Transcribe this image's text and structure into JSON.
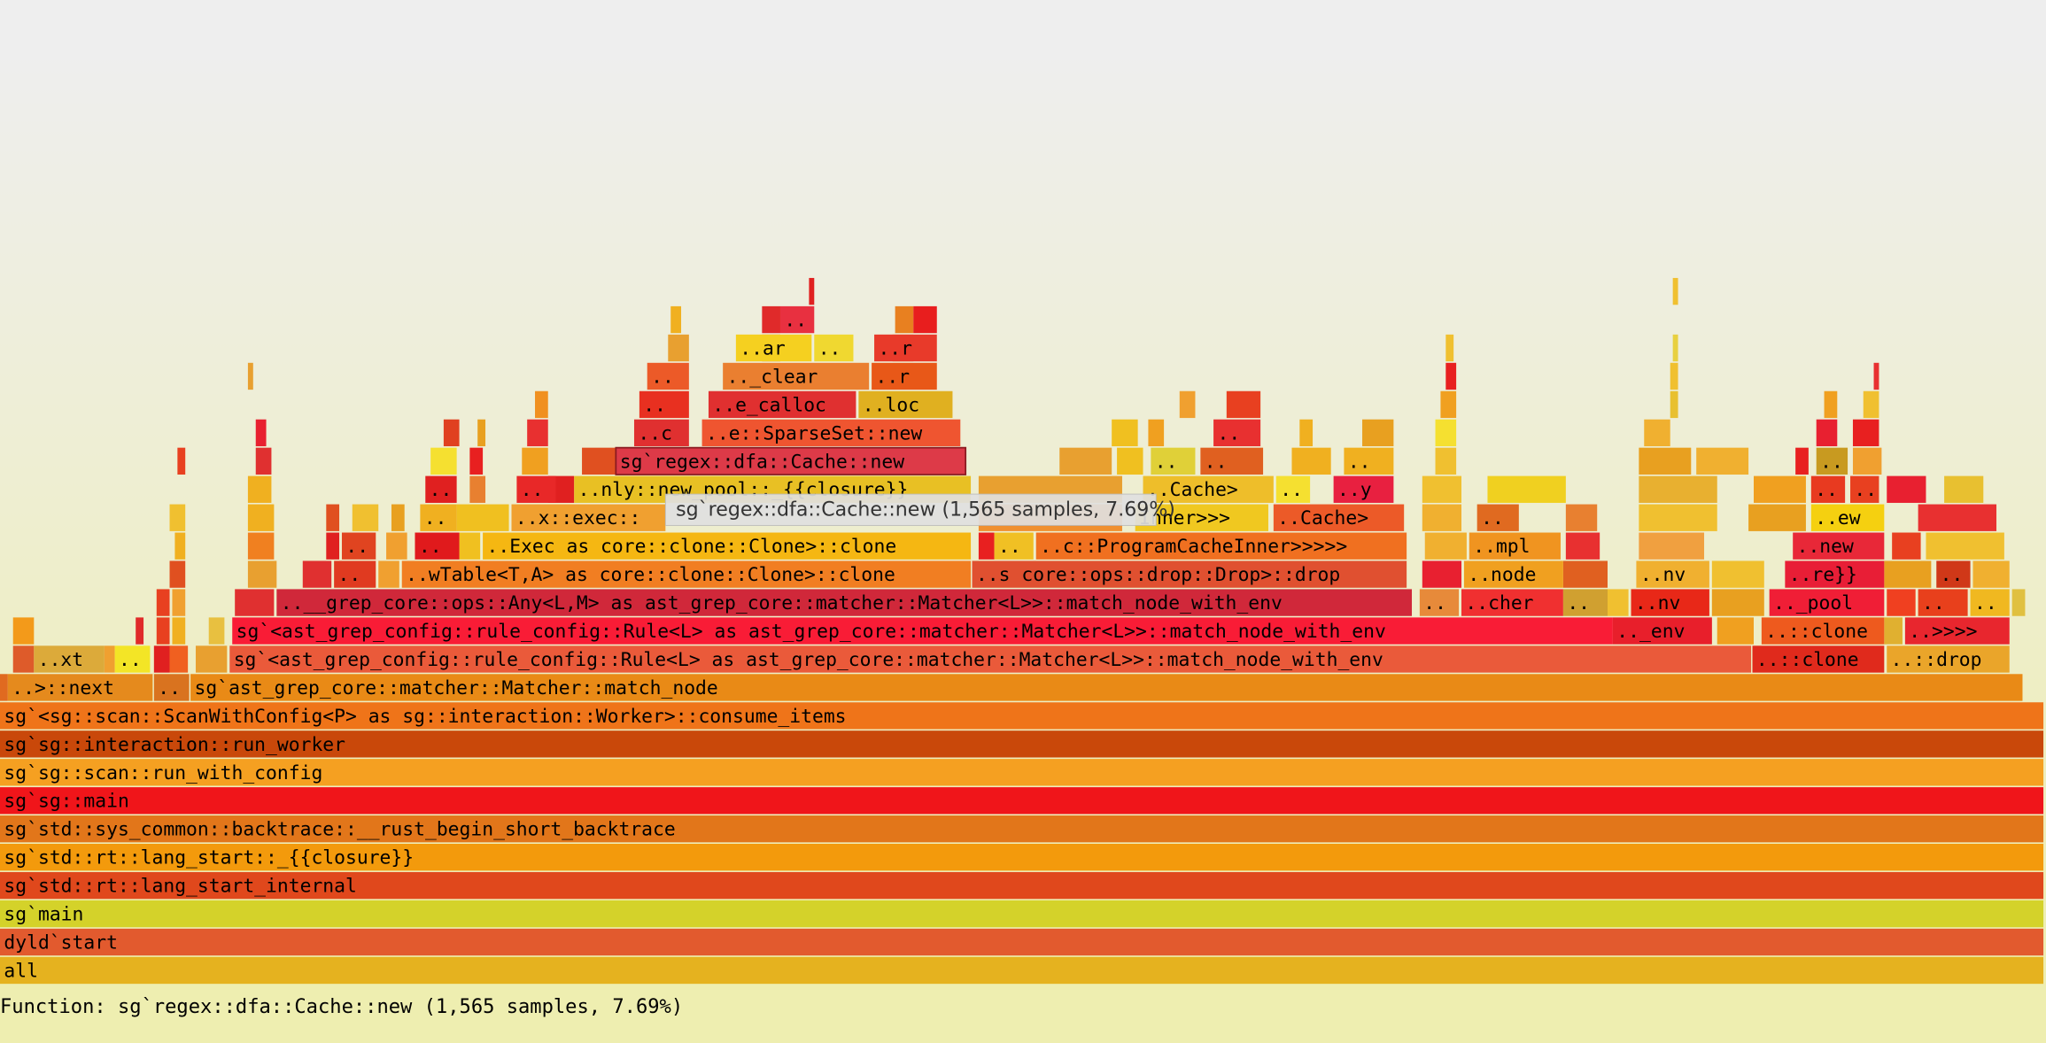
{
  "frames": [
    [
      "all"
    ],
    [
      "dyld`start"
    ],
    [
      "sg`main"
    ],
    [
      "sg`std::rt::lang_start_internal"
    ],
    [
      "sg`std::rt::lang_start::_{{closure}}"
    ],
    [
      "sg`std::sys_common::backtrace::__rust_begin_short_backtrace"
    ],
    [
      "sg`sg::main"
    ],
    [
      "sg`sg::scan::run_with_config"
    ],
    [
      "sg`sg::interaction::run_worker"
    ],
    [
      "sg`<sg::scan::ScanWithConfig<P> as sg::interaction::Worker>::consume_items"
    ],
    [
      "..>::next",
      "..",
      "sg`ast_grep_core::matcher::Matcher::match_node"
    ],
    [
      "..xt",
      "..",
      "sg`<ast_grep_config::rule_config::Rule<L> as ast_grep_core::matcher::Matcher<L>>::match_node_with_env",
      "..::clone",
      "..::drop"
    ],
    [
      "sg`<ast_grep_config::rule_config::Rule<L> as ast_grep_core::matcher::Matcher<L>>::match_node_with_env",
      ".._env",
      "..::clone",
      "..>>>>"
    ],
    [
      "..__grep_core::ops::Any<L,M> as ast_grep_core::matcher::Matcher<L>>::match_node_with_env",
      "..",
      "..cher",
      "..",
      "..nv",
      ".._pool",
      "..",
      ".."
    ],
    [
      "..",
      "..wTable<T,A> as core::clone::Clone>::clone",
      "..s core::ops::drop::Drop>::drop",
      "..node",
      "..nv",
      "..re}}",
      ".."
    ],
    [
      "..",
      "..",
      "..Exec as core::clone::Clone>::clone",
      "..",
      "..c::ProgramCacheInner>>>>>",
      "..mpl",
      "..new"
    ],
    [
      "..",
      "..x::exec::",
      "Inner>>>",
      "..Cache>",
      "..",
      "..ew"
    ],
    [
      "..",
      "..",
      "..nly::new_pool::_{{closure}}",
      "..Cache>",
      "..",
      "..y",
      "..",
      ".."
    ],
    [
      "sg`regex::dfa::Cache::new",
      "..",
      "..",
      "..",
      ".."
    ],
    [
      "..c",
      "..e::SparseSet::new",
      ".."
    ],
    [
      "..",
      "..e_calloc",
      "..loc"
    ],
    [
      "..",
      ".._clear",
      "..r"
    ],
    [
      "..ar",
      "..",
      "..r"
    ],
    [
      ".."
    ]
  ],
  "tooltip": "sg`regex::dfa::Cache::new (1,565 samples, 7.69%)",
  "status": "Function: sg`regex::dfa::Cache::new (1,565 samples, 7.69%)"
}
